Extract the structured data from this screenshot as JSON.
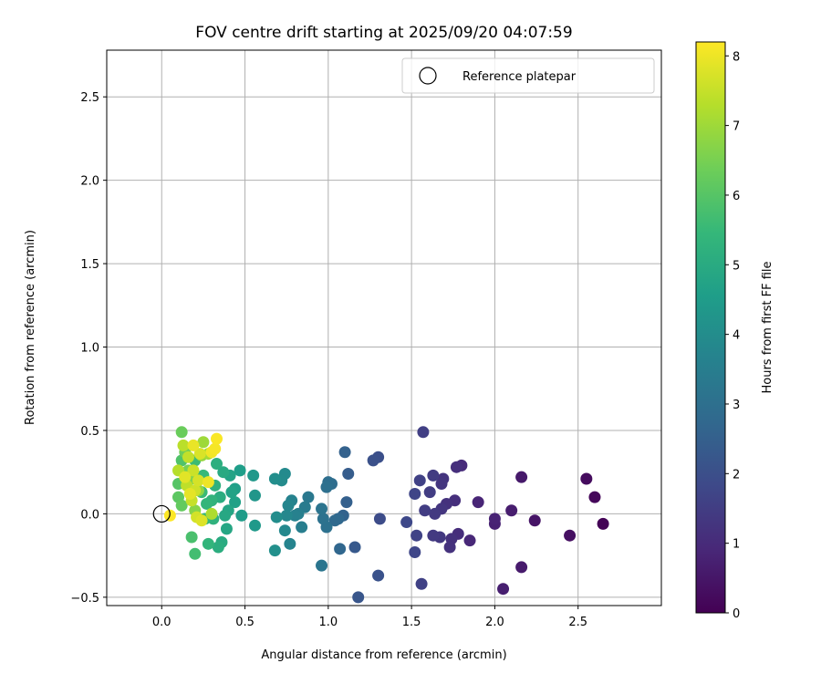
{
  "chart_data": {
    "type": "scatter",
    "title": "FOV centre drift starting at 2025/09/20 04:07:59",
    "xlabel": "Angular distance from reference (arcmin)",
    "ylabel": "Rotation from reference (arcmin)",
    "xlim": [
      -0.33,
      3.0
    ],
    "ylim": [
      -0.55,
      2.78
    ],
    "xticks": [
      0.0,
      0.5,
      1.0,
      1.5,
      2.0,
      2.5
    ],
    "xtick_labels": [
      "0.0",
      "0.5",
      "1.0",
      "1.5",
      "2.0",
      "2.5"
    ],
    "yticks": [
      -0.5,
      0.0,
      0.5,
      1.0,
      1.5,
      2.0,
      2.5
    ],
    "ytick_labels": [
      "−0.5",
      "0.0",
      "0.5",
      "1.0",
      "1.5",
      "2.0",
      "2.5"
    ],
    "grid": true,
    "legend": {
      "location": "top-right",
      "label": "Reference platepar"
    },
    "reference": {
      "x": 0.0,
      "y": 0.0
    },
    "colorbar": {
      "label": "Hours from first FF file",
      "range": [
        0,
        8.2
      ],
      "ticks": [
        0,
        1,
        2,
        3,
        4,
        5,
        6,
        7,
        8
      ],
      "tick_labels": [
        "0",
        "1",
        "2",
        "3",
        "4",
        "5",
        "6",
        "7",
        "8"
      ],
      "colormap": "viridis",
      "colors": [
        "#440154",
        "#482878",
        "#3e4989",
        "#31688e",
        "#26828e",
        "#1f9e89",
        "#35b779",
        "#6ece58",
        "#b5de2b",
        "#fde725"
      ]
    },
    "points": [
      {
        "x": 2.65,
        "y": -0.06,
        "h": 0.05
      },
      {
        "x": 2.6,
        "y": 0.1,
        "h": 0.15
      },
      {
        "x": 2.55,
        "y": 0.21,
        "h": 0.25
      },
      {
        "x": 2.45,
        "y": -0.13,
        "h": 0.35
      },
      {
        "x": 2.24,
        "y": -0.04,
        "h": 0.45
      },
      {
        "x": 2.16,
        "y": 0.22,
        "h": 0.55
      },
      {
        "x": 2.16,
        "y": -0.32,
        "h": 0.6
      },
      {
        "x": 2.1,
        "y": 0.02,
        "h": 0.65
      },
      {
        "x": 2.05,
        "y": -0.45,
        "h": 0.7
      },
      {
        "x": 2.0,
        "y": -0.06,
        "h": 0.75
      },
      {
        "x": 2.0,
        "y": -0.03,
        "h": 0.8
      },
      {
        "x": 1.9,
        "y": 0.07,
        "h": 0.85
      },
      {
        "x": 1.85,
        "y": -0.16,
        "h": 0.9
      },
      {
        "x": 1.8,
        "y": 0.29,
        "h": 1.0
      },
      {
        "x": 1.78,
        "y": -0.12,
        "h": 1.05
      },
      {
        "x": 1.77,
        "y": 0.28,
        "h": 1.1
      },
      {
        "x": 1.76,
        "y": 0.08,
        "h": 1.1
      },
      {
        "x": 1.74,
        "y": -0.15,
        "h": 1.15
      },
      {
        "x": 1.73,
        "y": -0.2,
        "h": 1.2
      },
      {
        "x": 1.71,
        "y": 0.06,
        "h": 1.2
      },
      {
        "x": 1.69,
        "y": 0.21,
        "h": 1.25
      },
      {
        "x": 1.68,
        "y": 0.18,
        "h": 1.3
      },
      {
        "x": 1.68,
        "y": 0.03,
        "h": 1.3
      },
      {
        "x": 1.67,
        "y": -0.14,
        "h": 1.35
      },
      {
        "x": 1.64,
        "y": 0.0,
        "h": 1.4
      },
      {
        "x": 1.63,
        "y": -0.13,
        "h": 1.4
      },
      {
        "x": 1.63,
        "y": 0.23,
        "h": 1.45
      },
      {
        "x": 1.61,
        "y": 0.13,
        "h": 1.5
      },
      {
        "x": 1.58,
        "y": 0.02,
        "h": 1.5
      },
      {
        "x": 1.57,
        "y": 0.49,
        "h": 1.55
      },
      {
        "x": 1.56,
        "y": -0.42,
        "h": 1.6
      },
      {
        "x": 1.55,
        "y": 0.2,
        "h": 1.6
      },
      {
        "x": 1.53,
        "y": -0.13,
        "h": 1.65
      },
      {
        "x": 1.52,
        "y": 0.12,
        "h": 1.7
      },
      {
        "x": 1.52,
        "y": -0.23,
        "h": 1.75
      },
      {
        "x": 1.47,
        "y": -0.05,
        "h": 1.8
      },
      {
        "x": 1.31,
        "y": -0.03,
        "h": 1.9
      },
      {
        "x": 1.3,
        "y": 0.34,
        "h": 2.0
      },
      {
        "x": 1.27,
        "y": 0.32,
        "h": 2.05
      },
      {
        "x": 1.3,
        "y": -0.37,
        "h": 2.1
      },
      {
        "x": 1.18,
        "y": -0.5,
        "h": 2.2
      },
      {
        "x": 1.16,
        "y": -0.2,
        "h": 2.3
      },
      {
        "x": 1.12,
        "y": 0.24,
        "h": 2.4
      },
      {
        "x": 1.11,
        "y": 0.07,
        "h": 2.5
      },
      {
        "x": 1.1,
        "y": 0.37,
        "h": 2.55
      },
      {
        "x": 1.09,
        "y": -0.01,
        "h": 2.6
      },
      {
        "x": 1.07,
        "y": -0.21,
        "h": 2.7
      },
      {
        "x": 1.06,
        "y": -0.03,
        "h": 2.75
      },
      {
        "x": 1.04,
        "y": -0.04,
        "h": 2.8
      },
      {
        "x": 1.02,
        "y": 0.18,
        "h": 2.9
      },
      {
        "x": 1.0,
        "y": 0.19,
        "h": 2.95
      },
      {
        "x": 0.99,
        "y": 0.16,
        "h": 3.0
      },
      {
        "x": 0.99,
        "y": -0.08,
        "h": 3.05
      },
      {
        "x": 0.97,
        "y": -0.03,
        "h": 3.1
      },
      {
        "x": 0.96,
        "y": 0.03,
        "h": 3.15
      },
      {
        "x": 0.96,
        "y": -0.31,
        "h": 3.2
      },
      {
        "x": 0.88,
        "y": 0.1,
        "h": 3.3
      },
      {
        "x": 0.86,
        "y": 0.04,
        "h": 3.4
      },
      {
        "x": 0.84,
        "y": -0.08,
        "h": 3.5
      },
      {
        "x": 0.82,
        "y": 0.0,
        "h": 3.55
      },
      {
        "x": 0.8,
        "y": -0.01,
        "h": 3.6
      },
      {
        "x": 0.78,
        "y": 0.08,
        "h": 3.65
      },
      {
        "x": 0.77,
        "y": -0.18,
        "h": 3.7
      },
      {
        "x": 0.76,
        "y": 0.05,
        "h": 3.75
      },
      {
        "x": 0.75,
        "y": -0.01,
        "h": 3.8
      },
      {
        "x": 0.74,
        "y": -0.1,
        "h": 3.85
      },
      {
        "x": 0.74,
        "y": 0.24,
        "h": 3.9
      },
      {
        "x": 0.72,
        "y": 0.2,
        "h": 3.95
      },
      {
        "x": 0.69,
        "y": -0.02,
        "h": 4.0
      },
      {
        "x": 0.68,
        "y": 0.21,
        "h": 4.05
      },
      {
        "x": 0.68,
        "y": -0.22,
        "h": 4.1
      },
      {
        "x": 0.56,
        "y": 0.11,
        "h": 4.3
      },
      {
        "x": 0.55,
        "y": 0.23,
        "h": 4.35
      },
      {
        "x": 0.56,
        "y": -0.07,
        "h": 4.4
      },
      {
        "x": 0.48,
        "y": -0.01,
        "h": 4.5
      },
      {
        "x": 0.47,
        "y": 0.26,
        "h": 4.55
      },
      {
        "x": 0.44,
        "y": 0.15,
        "h": 4.6
      },
      {
        "x": 0.44,
        "y": 0.07,
        "h": 4.65
      },
      {
        "x": 0.42,
        "y": 0.13,
        "h": 4.7
      },
      {
        "x": 0.41,
        "y": 0.23,
        "h": 4.75
      },
      {
        "x": 0.4,
        "y": 0.02,
        "h": 4.8
      },
      {
        "x": 0.39,
        "y": -0.09,
        "h": 4.85
      },
      {
        "x": 0.38,
        "y": -0.01,
        "h": 4.9
      },
      {
        "x": 0.37,
        "y": 0.25,
        "h": 4.95
      },
      {
        "x": 0.36,
        "y": -0.17,
        "h": 5.0
      },
      {
        "x": 0.35,
        "y": 0.1,
        "h": 5.05
      },
      {
        "x": 0.34,
        "y": -0.2,
        "h": 5.1
      },
      {
        "x": 0.33,
        "y": 0.3,
        "h": 5.15
      },
      {
        "x": 0.32,
        "y": 0.17,
        "h": 5.2
      },
      {
        "x": 0.31,
        "y": -0.03,
        "h": 5.25
      },
      {
        "x": 0.3,
        "y": 0.08,
        "h": 5.3
      },
      {
        "x": 0.28,
        "y": -0.18,
        "h": 5.35
      },
      {
        "x": 0.27,
        "y": 0.06,
        "h": 5.4
      },
      {
        "x": 0.26,
        "y": -0.03,
        "h": 5.45
      },
      {
        "x": 0.25,
        "y": 0.23,
        "h": 5.5
      },
      {
        "x": 0.24,
        "y": 0.13,
        "h": 5.55
      },
      {
        "x": 0.2,
        "y": 0.32,
        "h": 5.6
      },
      {
        "x": 0.2,
        "y": -0.24,
        "h": 5.7
      },
      {
        "x": 0.18,
        "y": -0.14,
        "h": 5.8
      },
      {
        "x": 0.12,
        "y": 0.32,
        "h": 5.9
      },
      {
        "x": 0.1,
        "y": 0.18,
        "h": 6.0
      },
      {
        "x": 0.1,
        "y": 0.1,
        "h": 6.1
      },
      {
        "x": 0.12,
        "y": 0.05,
        "h": 6.2
      },
      {
        "x": 0.12,
        "y": 0.49,
        "h": 6.3
      },
      {
        "x": 0.14,
        "y": 0.37,
        "h": 6.4
      },
      {
        "x": 0.16,
        "y": 0.26,
        "h": 6.5
      },
      {
        "x": 0.18,
        "y": 0.21,
        "h": 6.6
      },
      {
        "x": 0.2,
        "y": 0.02,
        "h": 6.7
      },
      {
        "x": 0.22,
        "y": 0.14,
        "h": 6.8
      },
      {
        "x": 0.24,
        "y": 0.35,
        "h": 6.9
      },
      {
        "x": 0.25,
        "y": 0.43,
        "h": 7.0
      },
      {
        "x": 0.28,
        "y": 0.36,
        "h": 7.1
      },
      {
        "x": 0.3,
        "y": 0.0,
        "h": 7.2
      },
      {
        "x": 0.1,
        "y": 0.26,
        "h": 7.3
      },
      {
        "x": 0.13,
        "y": 0.41,
        "h": 7.35
      },
      {
        "x": 0.15,
        "y": 0.17,
        "h": 7.4
      },
      {
        "x": 0.16,
        "y": 0.34,
        "h": 7.45
      },
      {
        "x": 0.18,
        "y": 0.08,
        "h": 7.5
      },
      {
        "x": 0.19,
        "y": 0.26,
        "h": 7.55
      },
      {
        "x": 0.2,
        "y": 0.14,
        "h": 7.6
      },
      {
        "x": 0.21,
        "y": -0.02,
        "h": 7.65
      },
      {
        "x": 0.22,
        "y": 0.2,
        "h": 7.7
      },
      {
        "x": 0.23,
        "y": 0.36,
        "h": 7.75
      },
      {
        "x": 0.24,
        "y": -0.04,
        "h": 7.8
      },
      {
        "x": 0.14,
        "y": 0.22,
        "h": 7.85
      },
      {
        "x": 0.17,
        "y": 0.12,
        "h": 7.9
      },
      {
        "x": 0.19,
        "y": 0.41,
        "h": 7.95
      },
      {
        "x": 0.28,
        "y": 0.19,
        "h": 8.0
      },
      {
        "x": 0.3,
        "y": 0.37,
        "h": 8.05
      },
      {
        "x": 0.32,
        "y": 0.39,
        "h": 8.1
      },
      {
        "x": 0.33,
        "y": 0.45,
        "h": 8.15
      },
      {
        "x": 0.05,
        "y": -0.01,
        "h": 8.2
      }
    ]
  }
}
